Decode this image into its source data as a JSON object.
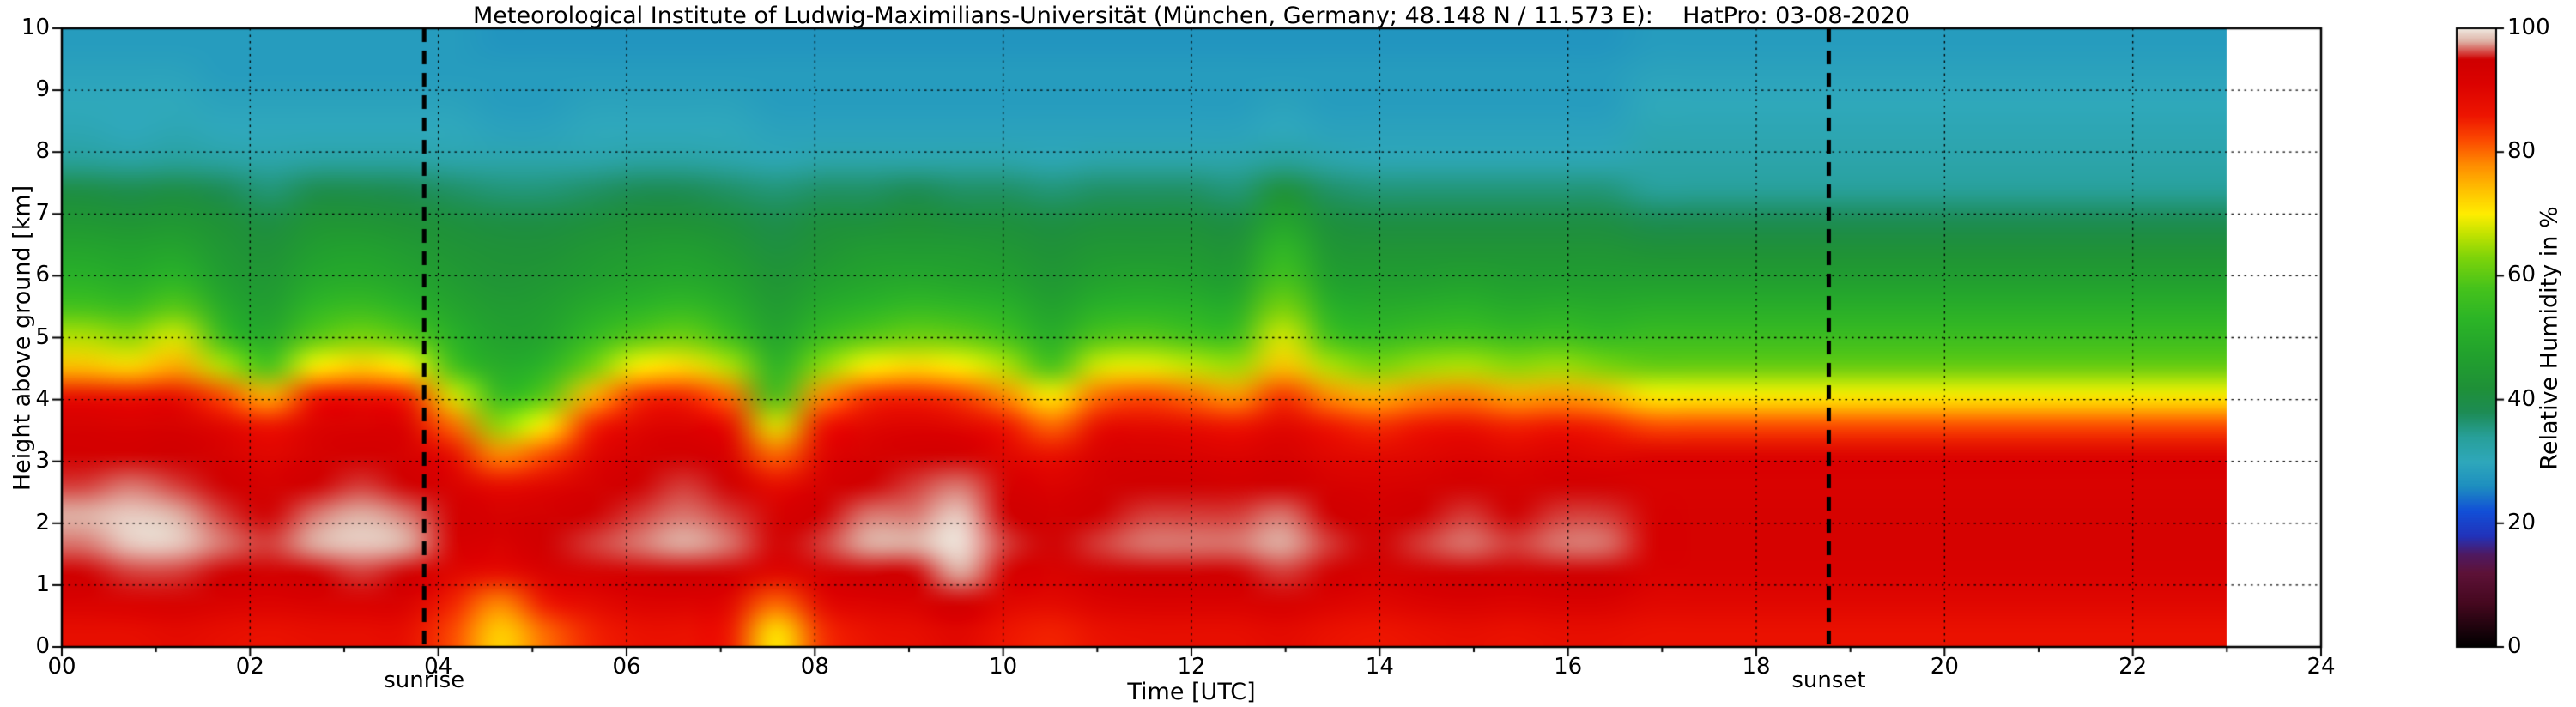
{
  "chart_data": {
    "type": "heatmap",
    "title": "Meteorological Institute of Ludwig-Maximilians-Universität (München, Germany; 48.148 N / 11.573 E):    HatPro: 03-08-2020",
    "xlabel": "Time [UTC]",
    "ylabel": "Height above ground [km]",
    "colorbar_label": "Relative Humidity in %",
    "xlim": [
      0,
      24
    ],
    "ylim": [
      0,
      10
    ],
    "clim": [
      0,
      100
    ],
    "grid": true,
    "x_ticks": [
      "00",
      "02",
      "04",
      "06",
      "08",
      "10",
      "12",
      "14",
      "16",
      "18",
      "20",
      "22",
      "24"
    ],
    "x_tick_values": [
      0,
      2,
      4,
      6,
      8,
      10,
      12,
      14,
      16,
      18,
      20,
      22,
      24
    ],
    "y_ticks": [
      "0",
      "1",
      "2",
      "3",
      "4",
      "5",
      "6",
      "7",
      "8",
      "9",
      "10"
    ],
    "y_tick_values": [
      0,
      1,
      2,
      3,
      4,
      5,
      6,
      7,
      8,
      9,
      10
    ],
    "colorbar_ticks": [
      "0",
      "20",
      "40",
      "60",
      "80",
      "100"
    ],
    "colorbar_tick_values": [
      0,
      20,
      40,
      60,
      80,
      100
    ],
    "annotations": [
      {
        "label": "sunrise",
        "time": 3.85
      },
      {
        "label": "sunset",
        "time": 18.77
      }
    ],
    "data_time_range": [
      0,
      23
    ],
    "colormap_stops": [
      [
        0,
        "#000000"
      ],
      [
        7,
        "#45081f"
      ],
      [
        12,
        "#5e1238"
      ],
      [
        15,
        "#4f1a62"
      ],
      [
        18,
        "#2233bb"
      ],
      [
        22,
        "#1250d8"
      ],
      [
        26,
        "#1e8fc0"
      ],
      [
        30,
        "#2fa8bb"
      ],
      [
        34,
        "#28a09a"
      ],
      [
        38,
        "#1d8c55"
      ],
      [
        42,
        "#1f9138"
      ],
      [
        47,
        "#22a12e"
      ],
      [
        53,
        "#2cb527"
      ],
      [
        58,
        "#46c31c"
      ],
      [
        63,
        "#7ed40a"
      ],
      [
        67,
        "#c6e400"
      ],
      [
        70,
        "#ffee00"
      ],
      [
        74,
        "#ffc000"
      ],
      [
        78,
        "#ff8c00"
      ],
      [
        82,
        "#fc4a00"
      ],
      [
        86,
        "#ee1500"
      ],
      [
        91,
        "#dc0300"
      ],
      [
        95,
        "#d00000"
      ],
      [
        98,
        "#dfb4a8"
      ],
      [
        100,
        "#f0e9e0"
      ]
    ],
    "times": [
      0,
      0.5,
      1,
      1.5,
      2,
      2.5,
      3,
      3.5,
      4,
      4.5,
      5,
      5.5,
      6,
      6.5,
      7,
      7.5,
      8,
      8.5,
      9,
      9.5,
      10,
      10.5,
      11,
      11.5,
      12,
      12.5,
      13,
      13.5,
      14,
      14.5,
      15,
      15.5,
      16,
      16.5,
      17,
      17.5,
      18,
      18.5,
      19,
      19.5,
      20,
      20.5,
      21,
      21.5,
      22,
      22.5,
      23
    ],
    "heights": [
      0,
      0.5,
      1,
      1.5,
      2,
      2.5,
      3,
      3.5,
      4,
      4.5,
      5,
      5.5,
      6,
      6.5,
      7,
      7.5,
      8,
      8.5,
      9,
      9.5,
      10
    ],
    "rh_percent": [
      [
        88,
        92,
        95,
        97,
        98,
        96,
        94,
        93,
        88,
        74,
        66,
        58,
        52,
        48,
        44,
        40,
        34,
        31,
        30,
        29,
        28
      ],
      [
        88,
        92,
        96,
        99,
        99,
        97,
        94,
        92,
        87,
        72,
        64,
        56,
        50,
        47,
        43,
        39,
        33,
        30,
        30,
        29,
        28
      ],
      [
        89,
        93,
        96,
        99,
        98,
        96,
        95,
        93,
        88,
        76,
        68,
        60,
        53,
        48,
        44,
        40,
        34,
        31,
        30,
        29,
        28
      ],
      [
        88,
        92,
        95,
        97,
        96,
        95,
        93,
        90,
        82,
        66,
        56,
        50,
        46,
        44,
        42,
        38,
        33,
        30,
        29,
        28,
        28
      ],
      [
        87,
        91,
        94,
        96,
        95,
        93,
        90,
        86,
        75,
        58,
        50,
        46,
        44,
        42,
        40,
        36,
        32,
        30,
        29,
        28,
        28
      ],
      [
        88,
        92,
        95,
        98,
        97,
        95,
        93,
        91,
        86,
        70,
        60,
        54,
        49,
        46,
        43,
        39,
        33,
        30,
        29,
        28,
        28
      ],
      [
        88,
        92,
        96,
        99,
        98,
        96,
        94,
        92,
        87,
        73,
        63,
        56,
        50,
        47,
        43,
        39,
        33,
        30,
        29,
        28,
        28
      ],
      [
        88,
        92,
        95,
        98,
        97,
        95,
        93,
        91,
        85,
        70,
        60,
        53,
        48,
        45,
        42,
        38,
        33,
        30,
        29,
        28,
        28
      ],
      [
        82,
        85,
        90,
        93,
        94,
        92,
        88,
        80,
        68,
        58,
        52,
        48,
        45,
        43,
        41,
        37,
        32,
        30,
        29,
        28,
        28
      ],
      [
        72,
        78,
        88,
        92,
        93,
        88,
        78,
        64,
        55,
        50,
        47,
        45,
        43,
        42,
        40,
        36,
        32,
        29,
        28,
        28,
        27
      ],
      [
        80,
        86,
        92,
        95,
        94,
        90,
        82,
        70,
        60,
        53,
        48,
        46,
        44,
        42,
        40,
        36,
        32,
        29,
        28,
        28,
        27
      ],
      [
        85,
        89,
        93,
        96,
        95,
        93,
        90,
        85,
        75,
        62,
        55,
        50,
        46,
        44,
        41,
        37,
        32,
        30,
        29,
        28,
        27
      ],
      [
        87,
        91,
        94,
        97,
        96,
        95,
        93,
        90,
        84,
        70,
        60,
        53,
        48,
        45,
        42,
        38,
        33,
        30,
        29,
        28,
        27
      ],
      [
        87,
        91,
        95,
        98,
        97,
        96,
        94,
        91,
        85,
        72,
        62,
        55,
        49,
        46,
        42,
        38,
        33,
        30,
        29,
        28,
        27
      ],
      [
        86,
        90,
        94,
        97,
        96,
        95,
        92,
        88,
        80,
        66,
        57,
        51,
        47,
        44,
        41,
        37,
        32,
        30,
        29,
        28,
        27
      ],
      [
        70,
        80,
        90,
        94,
        93,
        88,
        80,
        68,
        58,
        52,
        48,
        45,
        43,
        41,
        39,
        36,
        31,
        29,
        28,
        28,
        27
      ],
      [
        84,
        89,
        93,
        96,
        95,
        93,
        90,
        86,
        78,
        64,
        56,
        50,
        46,
        43,
        41,
        37,
        32,
        29,
        28,
        28,
        27
      ],
      [
        87,
        91,
        95,
        98,
        97,
        95,
        93,
        90,
        84,
        70,
        60,
        53,
        48,
        45,
        41,
        37,
        32,
        29,
        28,
        28,
        27
      ],
      [
        88,
        92,
        95,
        98,
        97,
        96,
        94,
        91,
        85,
        72,
        62,
        55,
        49,
        45,
        42,
        38,
        32,
        29,
        28,
        28,
        27
      ],
      [
        90,
        95,
        98,
        100,
        99,
        97,
        94,
        90,
        83,
        70,
        61,
        54,
        48,
        45,
        41,
        37,
        32,
        29,
        28,
        28,
        27
      ],
      [
        86,
        90,
        93,
        96,
        95,
        93,
        90,
        86,
        78,
        66,
        58,
        52,
        47,
        44,
        41,
        37,
        32,
        29,
        28,
        28,
        27
      ],
      [
        85,
        89,
        92,
        95,
        94,
        91,
        87,
        80,
        70,
        58,
        51,
        47,
        44,
        42,
        40,
        36,
        31,
        29,
        28,
        28,
        27
      ],
      [
        87,
        91,
        94,
        96,
        95,
        94,
        92,
        88,
        80,
        68,
        59,
        52,
        47,
        44,
        41,
        37,
        32,
        29,
        28,
        28,
        27
      ],
      [
        88,
        92,
        95,
        97,
        96,
        95,
        93,
        89,
        82,
        69,
        60,
        53,
        48,
        44,
        41,
        37,
        32,
        29,
        28,
        28,
        27
      ],
      [
        88,
        92,
        95,
        97,
        96,
        95,
        92,
        88,
        80,
        67,
        58,
        52,
        47,
        44,
        41,
        37,
        32,
        29,
        28,
        28,
        27
      ],
      [
        88,
        92,
        95,
        97,
        96,
        94,
        91,
        86,
        77,
        65,
        57,
        51,
        46,
        43,
        40,
        36,
        32,
        29,
        28,
        28,
        27
      ],
      [
        89,
        93,
        96,
        98,
        97,
        95,
        93,
        90,
        84,
        74,
        68,
        63,
        58,
        54,
        48,
        42,
        34,
        30,
        29,
        28,
        27
      ],
      [
        87,
        91,
        94,
        96,
        95,
        93,
        90,
        86,
        78,
        66,
        58,
        52,
        47,
        44,
        41,
        37,
        32,
        29,
        28,
        28,
        27
      ],
      [
        86,
        90,
        93,
        95,
        94,
        92,
        89,
        84,
        75,
        63,
        55,
        50,
        46,
        43,
        40,
        36,
        31,
        29,
        28,
        28,
        27
      ],
      [
        87,
        91,
        94,
        96,
        95,
        93,
        90,
        86,
        78,
        65,
        57,
        51,
        46,
        43,
        40,
        36,
        31,
        29,
        28,
        28,
        27
      ],
      [
        88,
        92,
        95,
        97,
        96,
        94,
        91,
        87,
        79,
        66,
        58,
        52,
        47,
        43,
        40,
        36,
        31,
        29,
        28,
        28,
        27
      ],
      [
        87,
        91,
        94,
        96,
        95,
        93,
        90,
        85,
        76,
        64,
        56,
        50,
        46,
        43,
        40,
        36,
        31,
        29,
        28,
        28,
        27
      ],
      [
        88,
        92,
        95,
        97,
        96,
        94,
        91,
        86,
        77,
        65,
        57,
        51,
        46,
        43,
        40,
        36,
        31,
        29,
        28,
        28,
        27
      ],
      [
        88,
        92,
        95,
        97,
        96,
        94,
        90,
        85,
        75,
        63,
        55,
        50,
        46,
        43,
        40,
        36,
        31,
        29,
        28,
        28,
        27
      ],
      [
        87,
        90,
        92,
        93,
        93,
        92,
        91,
        82,
        70,
        61,
        56,
        51,
        46,
        42,
        38,
        34,
        32,
        31,
        30,
        29,
        28
      ],
      [
        87,
        90,
        92,
        93,
        93,
        92,
        91,
        82,
        70,
        61,
        56,
        51,
        46,
        42,
        38,
        34,
        32,
        31,
        30,
        29,
        28
      ],
      [
        87,
        90,
        92,
        93,
        93,
        92,
        91,
        82,
        70,
        61,
        56,
        51,
        46,
        42,
        38,
        34,
        32,
        31,
        30,
        29,
        28
      ],
      [
        87,
        90,
        92,
        93,
        93,
        92,
        91,
        82,
        70,
        61,
        56,
        51,
        46,
        42,
        38,
        34,
        32,
        31,
        30,
        29,
        28
      ],
      [
        87,
        90,
        92,
        93,
        93,
        92,
        91,
        82,
        70,
        61,
        56,
        51,
        46,
        42,
        38,
        34,
        32,
        31,
        30,
        29,
        28
      ],
      [
        87,
        90,
        92,
        93,
        93,
        92,
        91,
        82,
        70,
        61,
        56,
        51,
        46,
        42,
        38,
        34,
        32,
        31,
        30,
        29,
        28
      ],
      [
        87,
        90,
        92,
        93,
        93,
        92,
        91,
        82,
        70,
        61,
        56,
        51,
        46,
        42,
        38,
        34,
        32,
        31,
        30,
        29,
        28
      ],
      [
        87,
        90,
        92,
        93,
        93,
        92,
        91,
        82,
        70,
        61,
        56,
        51,
        46,
        42,
        38,
        34,
        32,
        31,
        30,
        29,
        28
      ],
      [
        87,
        90,
        92,
        93,
        93,
        92,
        91,
        82,
        70,
        61,
        56,
        51,
        46,
        42,
        38,
        34,
        32,
        31,
        30,
        29,
        28
      ],
      [
        87,
        90,
        92,
        93,
        93,
        92,
        91,
        82,
        70,
        61,
        56,
        51,
        46,
        42,
        38,
        34,
        32,
        31,
        30,
        29,
        28
      ],
      [
        87,
        90,
        92,
        93,
        93,
        92,
        91,
        82,
        70,
        61,
        56,
        51,
        46,
        42,
        38,
        34,
        32,
        31,
        30,
        29,
        28
      ],
      [
        87,
        90,
        92,
        93,
        93,
        92,
        91,
        82,
        70,
        61,
        56,
        51,
        46,
        42,
        38,
        34,
        32,
        31,
        30,
        29,
        28
      ],
      [
        87,
        90,
        92,
        93,
        93,
        92,
        91,
        82,
        70,
        61,
        56,
        51,
        46,
        42,
        38,
        34,
        32,
        31,
        30,
        29,
        28
      ]
    ]
  }
}
